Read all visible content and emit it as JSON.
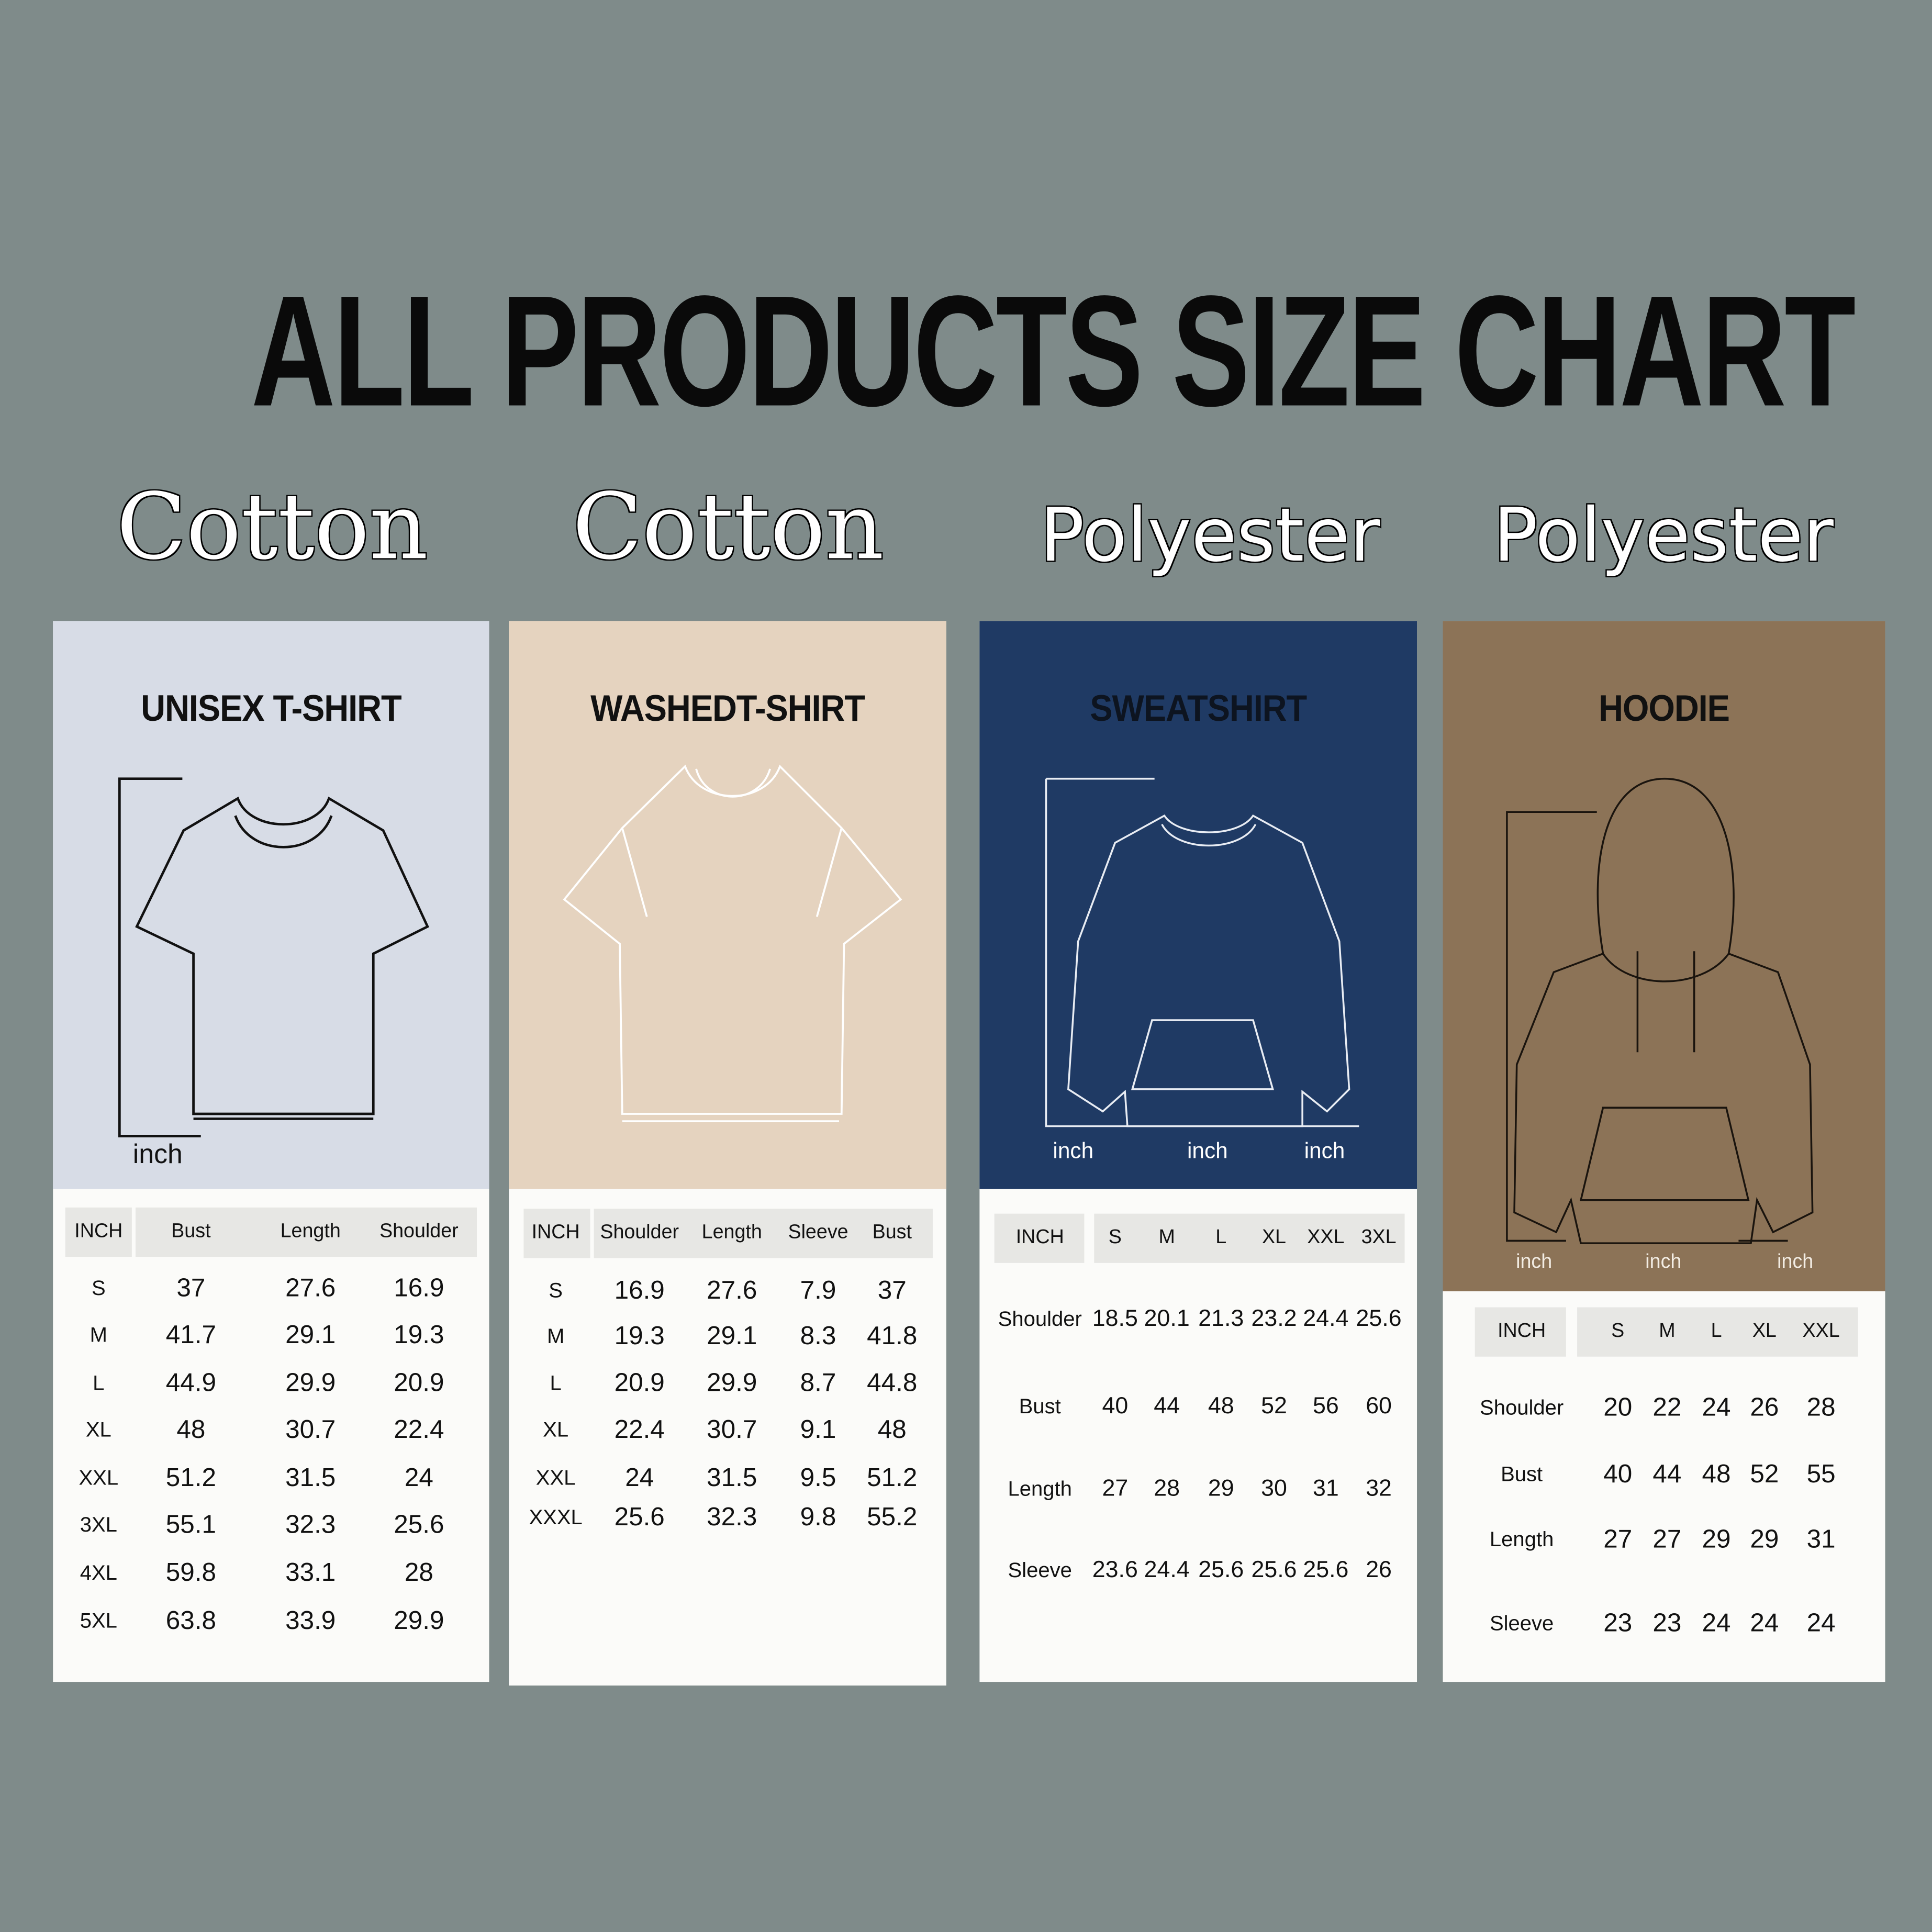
{
  "title": "ALL PRODUCTS SIZE CHART",
  "colors": {
    "background": "#7f8b8a",
    "tshirt": "#d7dce6",
    "washed": "#e5d3bf",
    "sweatshirt": "#1f3a64",
    "hoodie": "#8c7357"
  },
  "products": [
    {
      "material": "Cotton",
      "name": "UNISEX T-SHIRT",
      "unit_labels": [
        "inch"
      ],
      "icon": "t-shirt-outline-icon",
      "table": {
        "headers": [
          "INCH",
          "Bust",
          "Length",
          "Shoulder"
        ],
        "rows": [
          [
            "S",
            "37",
            "27.6",
            "16.9"
          ],
          [
            "M",
            "41.7",
            "29.1",
            "19.3"
          ],
          [
            "L",
            "44.9",
            "29.9",
            "20.9"
          ],
          [
            "XL",
            "48",
            "30.7",
            "22.4"
          ],
          [
            "XXL",
            "51.2",
            "31.5",
            "24"
          ],
          [
            "3XL",
            "55.1",
            "32.3",
            "25.6"
          ],
          [
            "4XL",
            "59.8",
            "33.1",
            "28"
          ],
          [
            "5XL",
            "63.8",
            "33.9",
            "29.9"
          ]
        ]
      }
    },
    {
      "material": "Cotton",
      "name": "WASHEDT-SHIRT",
      "unit_labels": [],
      "icon": "oversized-t-shirt-outline-icon",
      "table": {
        "headers": [
          "INCH",
          "Shoulder",
          "Length",
          "Sleeve",
          "Bust"
        ],
        "rows": [
          [
            "S",
            "16.9",
            "27.6",
            "7.9",
            "37"
          ],
          [
            "M",
            "19.3",
            "29.1",
            "8.3",
            "41.8"
          ],
          [
            "L",
            "20.9",
            "29.9",
            "8.7",
            "44.8"
          ],
          [
            "XL",
            "22.4",
            "30.7",
            "9.1",
            "48"
          ],
          [
            "XXL",
            "24",
            "31.5",
            "9.5",
            "51.2"
          ],
          [
            "XXXL",
            "25.6",
            "32.3",
            "9.8",
            "55.2"
          ]
        ]
      }
    },
    {
      "material": "Polyester",
      "name": "SWEATSHIRT",
      "unit_labels": [
        "inch",
        "inch",
        "inch"
      ],
      "icon": "sweatshirt-outline-icon",
      "table": {
        "headers": [
          "INCH",
          "S",
          "M",
          "L",
          "XL",
          "XXL",
          "3XL"
        ],
        "rows": [
          [
            "Shoulder",
            "18.5",
            "20.1",
            "21.3",
            "23.2",
            "24.4",
            "25.6"
          ],
          [
            "Bust",
            "40",
            "44",
            "48",
            "52",
            "56",
            "60"
          ],
          [
            "Length",
            "27",
            "28",
            "29",
            "30",
            "31",
            "32"
          ],
          [
            "Sleeve",
            "23.6",
            "24.4",
            "25.6",
            "25.6",
            "25.6",
            "26"
          ]
        ]
      }
    },
    {
      "material": "Polyester",
      "name": "HOODIE",
      "unit_labels": [
        "inch",
        "inch",
        "inch"
      ],
      "icon": "hoodie-outline-icon",
      "table": {
        "headers": [
          "INCH",
          "S",
          "M",
          "L",
          "XL",
          "XXL"
        ],
        "rows": [
          [
            "Shoulder",
            "20",
            "22",
            "24",
            "26",
            "28"
          ],
          [
            "Bust",
            "40",
            "44",
            "48",
            "52",
            "55"
          ],
          [
            "Length",
            "27",
            "27",
            "29",
            "29",
            "31"
          ],
          [
            "Sleeve",
            "23",
            "23",
            "24",
            "24",
            "24"
          ]
        ]
      }
    }
  ]
}
